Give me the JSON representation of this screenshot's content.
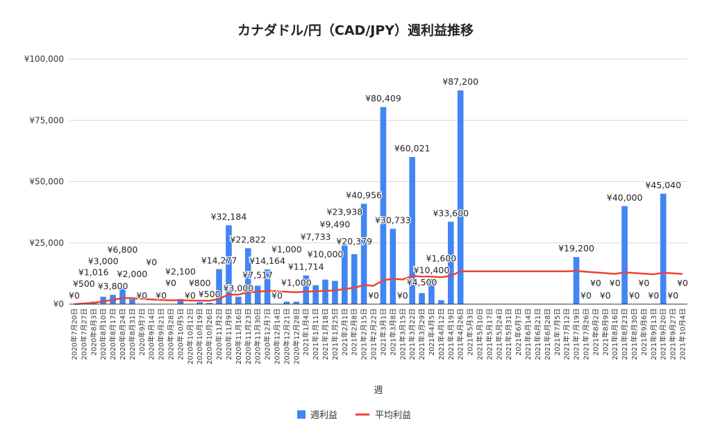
{
  "chart_data": {
    "type": "bar",
    "title": "カナダドル/円（CAD/JPY）週利益推移",
    "xlabel": "週",
    "ylabel": "",
    "ylim": [
      0,
      100000
    ],
    "yticks": [
      "¥0",
      "¥25,000",
      "¥50,000",
      "¥75,000",
      "¥100,000"
    ],
    "ytick_values": [
      0,
      25000,
      50000,
      75000,
      100000
    ],
    "grid": true,
    "legend_position": "bottom",
    "colors": {
      "bar": "#4285f4",
      "line": "#ea4335",
      "grid": "#d9d9d9"
    },
    "categories": [
      "2020年7月20日",
      "2020年7月27日",
      "2020年8月3日",
      "2020年8月10日",
      "2020年8月17日",
      "2020年8月24日",
      "2020年8月31日",
      "2020年9月7日",
      "2020年9月14日",
      "2020年9月21日",
      "2020年9月28日",
      "2020年10月5日",
      "2020年10月12日",
      "2020年10月19日",
      "2020年10月26日",
      "2020年11月2日",
      "2020年11月9日",
      "2020年11月16日",
      "2020年11月23日",
      "2020年11月30日",
      "2020年12月7日",
      "2020年12月14日",
      "2020年12月21日",
      "2020年12月28日",
      "2021年1月4日",
      "2021年1月11日",
      "2021年1月18日",
      "2021年1月25日",
      "2021年2月1日",
      "2021年2月8日",
      "2021年2月15日",
      "2021年2月22日",
      "2021年3月1日",
      "2021年3月8日",
      "2021年3月15日",
      "2021年3月22日",
      "2021年3月29日",
      "2021年4月5日",
      "2021年4月12日",
      "2021年4月19日",
      "2021年4月26日",
      "2021年5月3日",
      "2021年5月10日",
      "2021年5月17日",
      "2021年5月24日",
      "2021年5月31日",
      "2021年6月7日",
      "2021年6月14日",
      "2021年6月21日",
      "2021年6月28日",
      "2021年7月5日",
      "2021年7月12日",
      "2021年7月19日",
      "2021年7月26日",
      "2021年8月2日",
      "2021年8月9日",
      "2021年8月16日",
      "2021年8月23日",
      "2021年8月30日",
      "2021年9月6日",
      "2021年9月13日",
      "2021年9月20日",
      "2021年9月27日",
      "2021年10月4日"
    ],
    "series": [
      {
        "name": "週利益",
        "type": "bar",
        "values": [
          0,
          500,
          1016,
          3000,
          3800,
          6800,
          2000,
          0,
          0,
          0,
          0,
          2100,
          0,
          800,
          500,
          14277,
          32184,
          3000,
          22822,
          7517,
          14164,
          0,
          1000,
          1000,
          11714,
          7733,
          10000,
          9490,
          23938,
          20379,
          40956,
          0,
          80409,
          30733,
          0,
          60021,
          4500,
          10400,
          1600,
          33600,
          87200,
          null,
          null,
          null,
          null,
          null,
          null,
          null,
          null,
          null,
          null,
          null,
          19200,
          0,
          0,
          0,
          0,
          40000,
          0,
          0,
          0,
          45040,
          0,
          0
        ]
      },
      {
        "name": "平均利益",
        "type": "line",
        "derived": "running-average-of-週利益"
      }
    ]
  }
}
